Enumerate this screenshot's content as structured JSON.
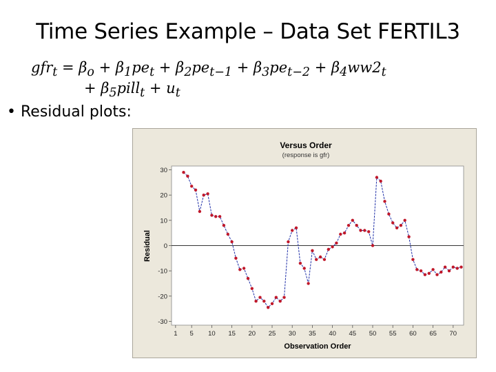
{
  "slide": {
    "title": "Time Series Example – Data Set FERTIL3",
    "equation_line1": "gfr_t = β_o + β_1 pe_t + β_2 pe_{t−1} + β_3 pe_{t−2} + β_4 ww2_t",
    "equation_line2": "+ β_5 pill_t + u_t",
    "bullet": "Residual plots:"
  },
  "colors": {
    "frame_bg": "#ece8dc",
    "plot_bg": "#ffffff",
    "line": "#1f2fa8",
    "marker": "#c0182a"
  },
  "chart_data": {
    "type": "line",
    "title": "Versus Order",
    "subtitle": "(response is gfr)",
    "xlabel": "Observation Order",
    "ylabel": "Residual",
    "xlim": [
      1,
      72
    ],
    "ylim": [
      -30,
      30
    ],
    "xticks": [
      1,
      5,
      10,
      15,
      20,
      25,
      30,
      35,
      40,
      45,
      50,
      55,
      60,
      65,
      70
    ],
    "yticks": [
      -30,
      -20,
      -10,
      0,
      10,
      20,
      30
    ],
    "reference_line": 0,
    "grid": false,
    "series": [
      {
        "x": [
          3,
          4,
          5,
          6,
          7,
          8,
          9,
          10,
          11,
          12,
          13,
          14,
          15,
          16,
          17,
          18,
          19,
          20,
          21,
          22,
          23,
          24,
          25,
          26,
          27,
          28,
          29,
          30,
          31,
          32,
          33,
          34,
          35,
          36,
          37,
          38,
          39,
          40,
          41,
          42,
          43,
          44,
          45,
          46,
          47,
          48,
          49,
          50,
          51,
          52,
          53,
          54,
          55,
          56,
          57,
          58,
          59,
          60,
          61,
          62,
          63,
          64,
          65,
          66,
          67,
          68,
          69,
          70,
          71,
          72
        ],
        "y": [
          29,
          27.5,
          23.5,
          22,
          13.5,
          20,
          20.5,
          12,
          11.5,
          11.5,
          8,
          4.5,
          1.5,
          -5,
          -9.5,
          -9,
          -13,
          -17,
          -22,
          -20.5,
          -22,
          -24.5,
          -23,
          -20.5,
          -22,
          -20.5,
          1.5,
          6,
          7,
          -7,
          -9,
          -15,
          -2,
          -5.5,
          -4.5,
          -5.5,
          -1.5,
          -0.5,
          1,
          4.5,
          5,
          8,
          10,
          8,
          6,
          6,
          5.5,
          0,
          27,
          25.5,
          17.5,
          12.5,
          9,
          7,
          8,
          10,
          3.5,
          -5.5,
          -9.5,
          -10,
          -11.5,
          -11,
          -9.5,
          -11.5,
          -10.5,
          -8.5,
          -10,
          -8.5,
          -9,
          -8.5
        ]
      }
    ]
  }
}
